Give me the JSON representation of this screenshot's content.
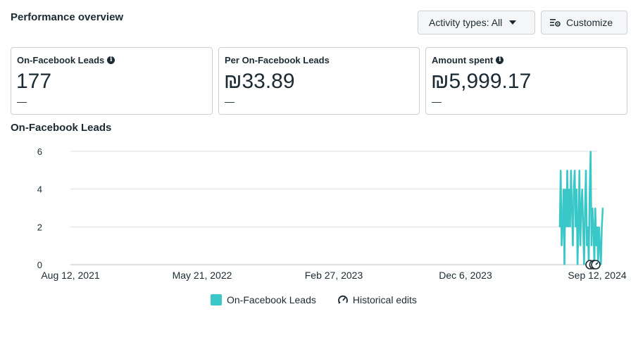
{
  "header": {
    "title": "Performance overview",
    "activity_label": "Activity types: All",
    "customize_label": "Customize"
  },
  "cards": [
    {
      "label": "On-Facebook Leads",
      "value": "177",
      "delta": "—",
      "info": true
    },
    {
      "label": "Per On-Facebook Leads",
      "value": "₪33.89",
      "delta": "—",
      "info": false
    },
    {
      "label": "Amount spent",
      "value": "₪5,999.17",
      "delta": "—",
      "info": true
    }
  ],
  "chart_title": "On-Facebook Leads",
  "legend": {
    "series_label": "On-Facebook Leads",
    "edits_label": "Historical edits"
  },
  "colors": {
    "series": "#3ac7c8",
    "grid": "#dddfe2",
    "text": "#1c2b33"
  },
  "chart_data": {
    "type": "line",
    "title": "On-Facebook Leads",
    "xlabel": "",
    "ylabel": "",
    "ylim": [
      0,
      6
    ],
    "yticks": [
      0,
      2,
      4,
      6
    ],
    "xticks": [
      "Aug 12, 2021",
      "May 21, 2022",
      "Feb 27, 2023",
      "Dec 6, 2023",
      "Sep 12, 2024"
    ],
    "x_range": [
      "2021-08-12",
      "2024-09-12"
    ],
    "series": [
      {
        "name": "On-Facebook Leads",
        "x_start": "2024-06-24",
        "values": [
          2,
          5,
          1,
          2,
          4,
          0,
          4,
          2,
          5,
          2,
          4,
          2,
          5,
          3,
          1,
          4,
          5,
          2,
          4,
          0,
          2,
          5,
          1,
          3,
          4,
          2,
          0,
          3,
          5,
          1,
          2,
          0,
          4,
          6,
          1,
          3,
          2,
          0,
          3,
          1,
          2,
          0,
          2,
          1,
          0,
          2,
          3
        ]
      }
    ],
    "historical_edits": [
      "2024-08-28",
      "2024-09-05",
      "2024-09-09"
    ],
    "grid": true,
    "legend_position": "bottom"
  }
}
